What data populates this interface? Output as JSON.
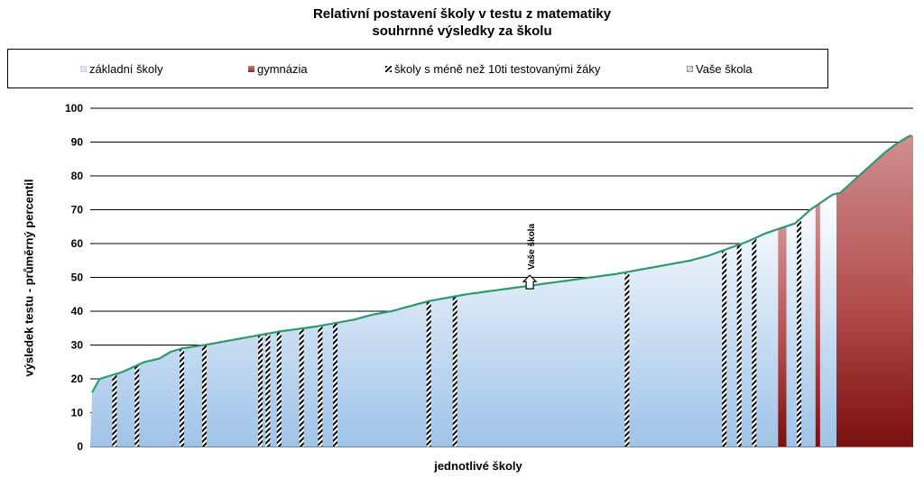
{
  "chart_data": {
    "type": "area",
    "title": "Relativní postavení školy v testu z matematiky",
    "subtitle": "souhrnné výsledky za školu",
    "xlabel": "jednotlivé školy",
    "ylabel": "výsledek testu - průměrný percentil",
    "ylim": [
      0,
      100
    ],
    "yticks": [
      0,
      10,
      20,
      30,
      40,
      50,
      60,
      70,
      80,
      90,
      100
    ],
    "grid": true,
    "legend_position": "top",
    "legend": [
      {
        "label": "základní školy",
        "key": "zakl"
      },
      {
        "label": "gymnázia",
        "key": "gym"
      },
      {
        "label": "školy s méně než 10ti testovanými žáky",
        "key": "small"
      },
      {
        "label": "Vaše škola",
        "key": "vase"
      }
    ],
    "n_schools": 200,
    "series": [
      {
        "name": "základní školy",
        "profile_x": [
          0,
          1,
          2,
          5,
          8,
          12,
          14,
          16,
          18,
          21,
          24,
          27,
          30,
          35,
          40,
          50,
          60,
          70,
          75,
          80,
          85,
          90,
          100,
          110,
          120,
          130,
          140,
          150,
          160,
          165,
          170,
          175,
          180,
          184,
          188,
          192,
          194,
          196,
          198,
          200
        ],
        "profile_y": [
          16,
          18,
          20,
          21,
          22,
          24,
          25,
          25.5,
          26,
          28,
          29,
          29.5,
          30,
          31,
          32,
          34,
          35.5,
          37.5,
          39,
          40,
          41.5,
          43,
          45,
          46.5,
          48,
          49.5,
          51,
          53,
          55,
          56.5,
          58.5,
          60.5,
          63,
          64.5,
          66,
          70,
          71.5,
          73,
          74.5,
          75
        ]
      },
      {
        "name": "gymnázia",
        "profile_x": [
          200,
          203,
          206,
          209,
          212,
          215,
          218,
          220
        ],
        "profile_y": [
          75,
          78,
          81,
          84,
          87,
          89.5,
          91.5,
          92.5
        ]
      }
    ],
    "small_school_indices": [
      6,
      12,
      24,
      30,
      45,
      47,
      50,
      56,
      61,
      65,
      90,
      97,
      143,
      169,
      173,
      177,
      189
    ],
    "gymnazia_indices_in_blue_region": [
      184,
      185,
      194
    ],
    "vase_skola": {
      "index": 117,
      "value": 48.5,
      "label": "Vaše škola"
    }
  }
}
